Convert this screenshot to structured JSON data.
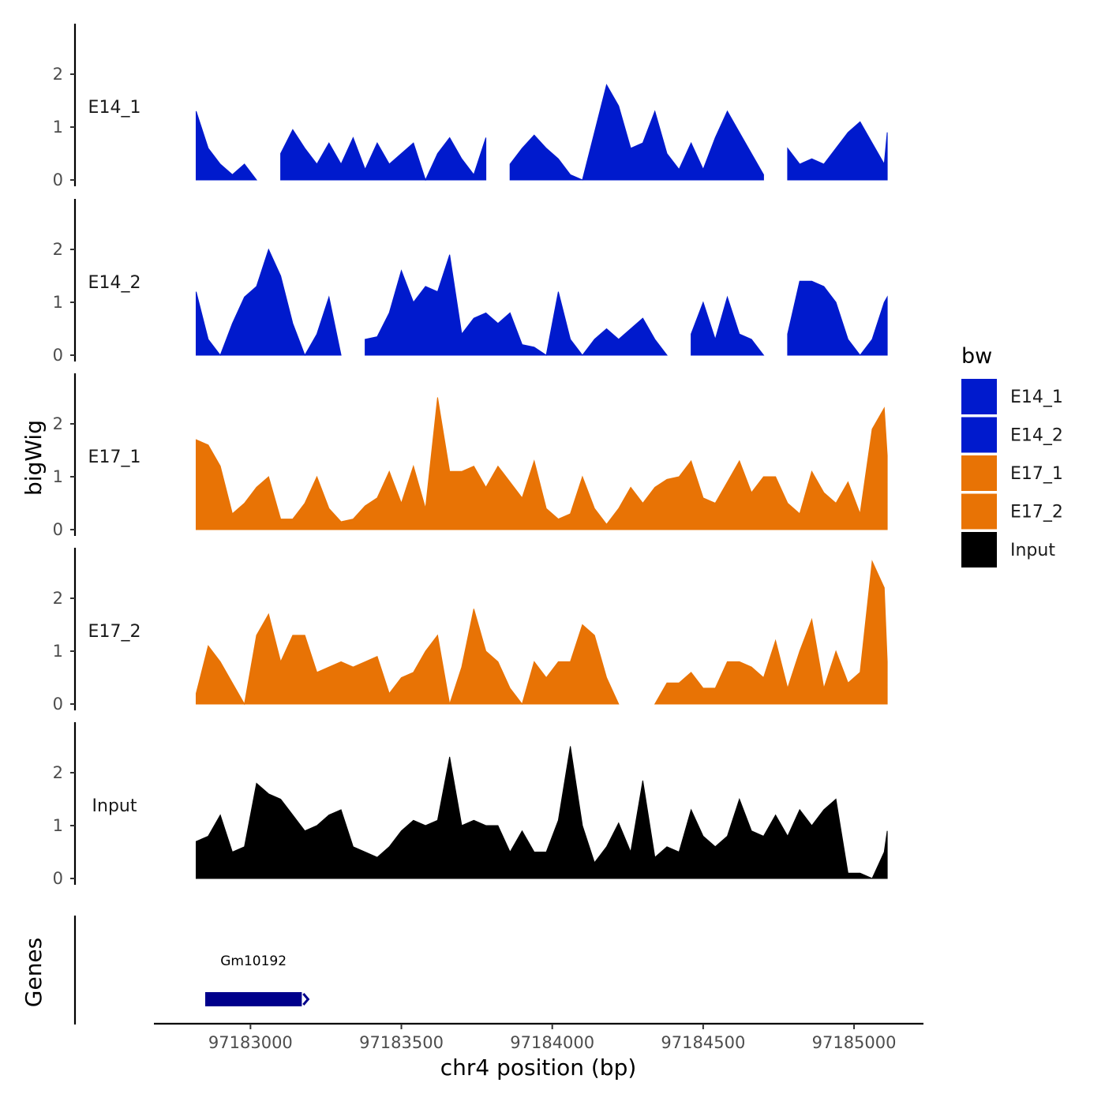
{
  "chart_data": {
    "type": "area",
    "xlabel": "chr4 position (bp)",
    "ylabel": "bigWig",
    "genes_ylabel": "Genes",
    "xlim": [
      97182680,
      97185230
    ],
    "ylim": [
      0,
      2.9
    ],
    "y_ticks": [
      0,
      1,
      2
    ],
    "x_ticks": [
      97183000,
      97183500,
      97184000,
      97184500,
      97185000
    ],
    "legend": {
      "title": "bw",
      "items": [
        {
          "label": "E14_1",
          "color": "#001ACD"
        },
        {
          "label": "E14_2",
          "color": "#001ACD"
        },
        {
          "label": "E17_1",
          "color": "#E87305"
        },
        {
          "label": "E17_2",
          "color": "#E87305"
        },
        {
          "label": "Input",
          "color": "#000000"
        }
      ]
    },
    "x": [
      97182820,
      97182860,
      97182900,
      97182940,
      97182980,
      97183020,
      97183060,
      97183100,
      97183140,
      97183180,
      97183220,
      97183260,
      97183300,
      97183340,
      97183380,
      97183420,
      97183460,
      97183500,
      97183540,
      97183580,
      97183620,
      97183660,
      97183700,
      97183740,
      97183780,
      97183820,
      97183860,
      97183900,
      97183940,
      97183980,
      97184020,
      97184060,
      97184100,
      97184140,
      97184180,
      97184220,
      97184260,
      97184300,
      97184340,
      97184380,
      97184420,
      97184460,
      97184500,
      97184540,
      97184580,
      97184620,
      97184660,
      97184700,
      97184740,
      97184780,
      97184820,
      97184860,
      97184900,
      97184940,
      97184980,
      97185020,
      97185060,
      97185100,
      97185110
    ],
    "series": [
      {
        "name": "E14_1",
        "color": "#001ACD",
        "values": [
          1.3,
          0.6,
          0.3,
          0.1,
          0.3,
          0.0,
          null,
          0.5,
          0.95,
          0.6,
          0.3,
          0.7,
          0.3,
          0.8,
          0.2,
          0.7,
          0.3,
          0.5,
          0.7,
          0.0,
          0.5,
          0.8,
          0.4,
          0.1,
          0.8,
          null,
          0.3,
          0.6,
          0.85,
          0.6,
          0.4,
          0.1,
          0.0,
          0.9,
          1.8,
          1.4,
          0.6,
          0.7,
          1.3,
          0.5,
          0.2,
          0.7,
          0.2,
          0.8,
          1.3,
          0.9,
          0.5,
          0.1,
          null,
          0.6,
          0.3,
          0.4,
          0.3,
          0.6,
          0.9,
          1.1,
          0.7,
          0.3,
          0.9
        ]
      },
      {
        "name": "E14_2",
        "color": "#001ACD",
        "values": [
          1.2,
          0.3,
          0.0,
          0.6,
          1.1,
          1.3,
          2.0,
          1.5,
          0.6,
          0.0,
          0.4,
          1.1,
          0.0,
          null,
          0.3,
          0.35,
          0.8,
          1.6,
          1.0,
          1.3,
          1.2,
          1.9,
          0.4,
          0.7,
          0.8,
          0.6,
          0.8,
          0.2,
          0.15,
          0.0,
          1.2,
          0.3,
          0.0,
          0.3,
          0.5,
          0.3,
          0.5,
          0.7,
          0.3,
          0.0,
          null,
          0.4,
          1.0,
          0.3,
          1.1,
          0.4,
          0.3,
          0.0,
          null,
          0.4,
          1.4,
          1.4,
          1.3,
          1.0,
          0.3,
          0.0,
          0.3,
          1.0,
          1.1
        ]
      },
      {
        "name": "E17_1",
        "color": "#E87305",
        "values": [
          1.7,
          1.6,
          1.2,
          0.3,
          0.5,
          0.8,
          1.0,
          0.2,
          0.2,
          0.5,
          1.0,
          0.4,
          0.15,
          0.2,
          0.45,
          0.6,
          1.1,
          0.5,
          1.2,
          0.4,
          2.5,
          1.1,
          1.1,
          1.2,
          0.8,
          1.2,
          0.9,
          0.6,
          1.3,
          0.4,
          0.2,
          0.3,
          1.0,
          0.4,
          0.1,
          0.4,
          0.8,
          0.5,
          0.8,
          0.95,
          1.0,
          1.3,
          0.6,
          0.5,
          0.9,
          1.3,
          0.7,
          1.0,
          1.0,
          0.5,
          0.3,
          1.1,
          0.7,
          0.5,
          0.9,
          0.3,
          1.9,
          2.3,
          1.4
        ]
      },
      {
        "name": "E17_2",
        "color": "#E87305",
        "values": [
          0.2,
          1.1,
          0.8,
          0.4,
          0.0,
          1.3,
          1.7,
          0.8,
          1.3,
          1.3,
          0.6,
          0.7,
          0.8,
          0.7,
          0.8,
          0.9,
          0.2,
          0.5,
          0.6,
          1.0,
          1.3,
          0.0,
          0.7,
          1.8,
          1.0,
          0.8,
          0.3,
          0.0,
          0.8,
          0.5,
          0.8,
          0.8,
          1.5,
          1.3,
          0.5,
          0.0,
          null,
          null,
          0.0,
          0.4,
          0.4,
          0.6,
          0.3,
          0.3,
          0.8,
          0.8,
          0.7,
          0.5,
          1.2,
          0.3,
          1.0,
          1.6,
          0.3,
          1.0,
          0.4,
          0.6,
          2.7,
          2.2,
          0.8
        ]
      },
      {
        "name": "Input",
        "color": "#000000",
        "values": [
          0.7,
          0.8,
          1.2,
          0.5,
          0.6,
          1.8,
          1.6,
          1.5,
          1.2,
          0.9,
          1.0,
          1.2,
          1.3,
          0.6,
          0.5,
          0.4,
          0.6,
          0.9,
          1.1,
          1.0,
          1.1,
          2.3,
          1.0,
          1.1,
          1.0,
          1.0,
          0.5,
          0.9,
          0.5,
          0.5,
          1.1,
          2.5,
          1.0,
          0.3,
          0.6,
          1.05,
          0.5,
          1.85,
          0.4,
          0.6,
          0.5,
          1.3,
          0.8,
          0.6,
          0.8,
          1.5,
          0.9,
          0.8,
          1.2,
          0.8,
          1.3,
          1.0,
          1.3,
          1.5,
          0.1,
          0.1,
          0.0,
          0.5,
          0.9
        ]
      }
    ],
    "genes": [
      {
        "name": "Gm10192",
        "start": 97182850,
        "end": 97183170
      }
    ]
  }
}
